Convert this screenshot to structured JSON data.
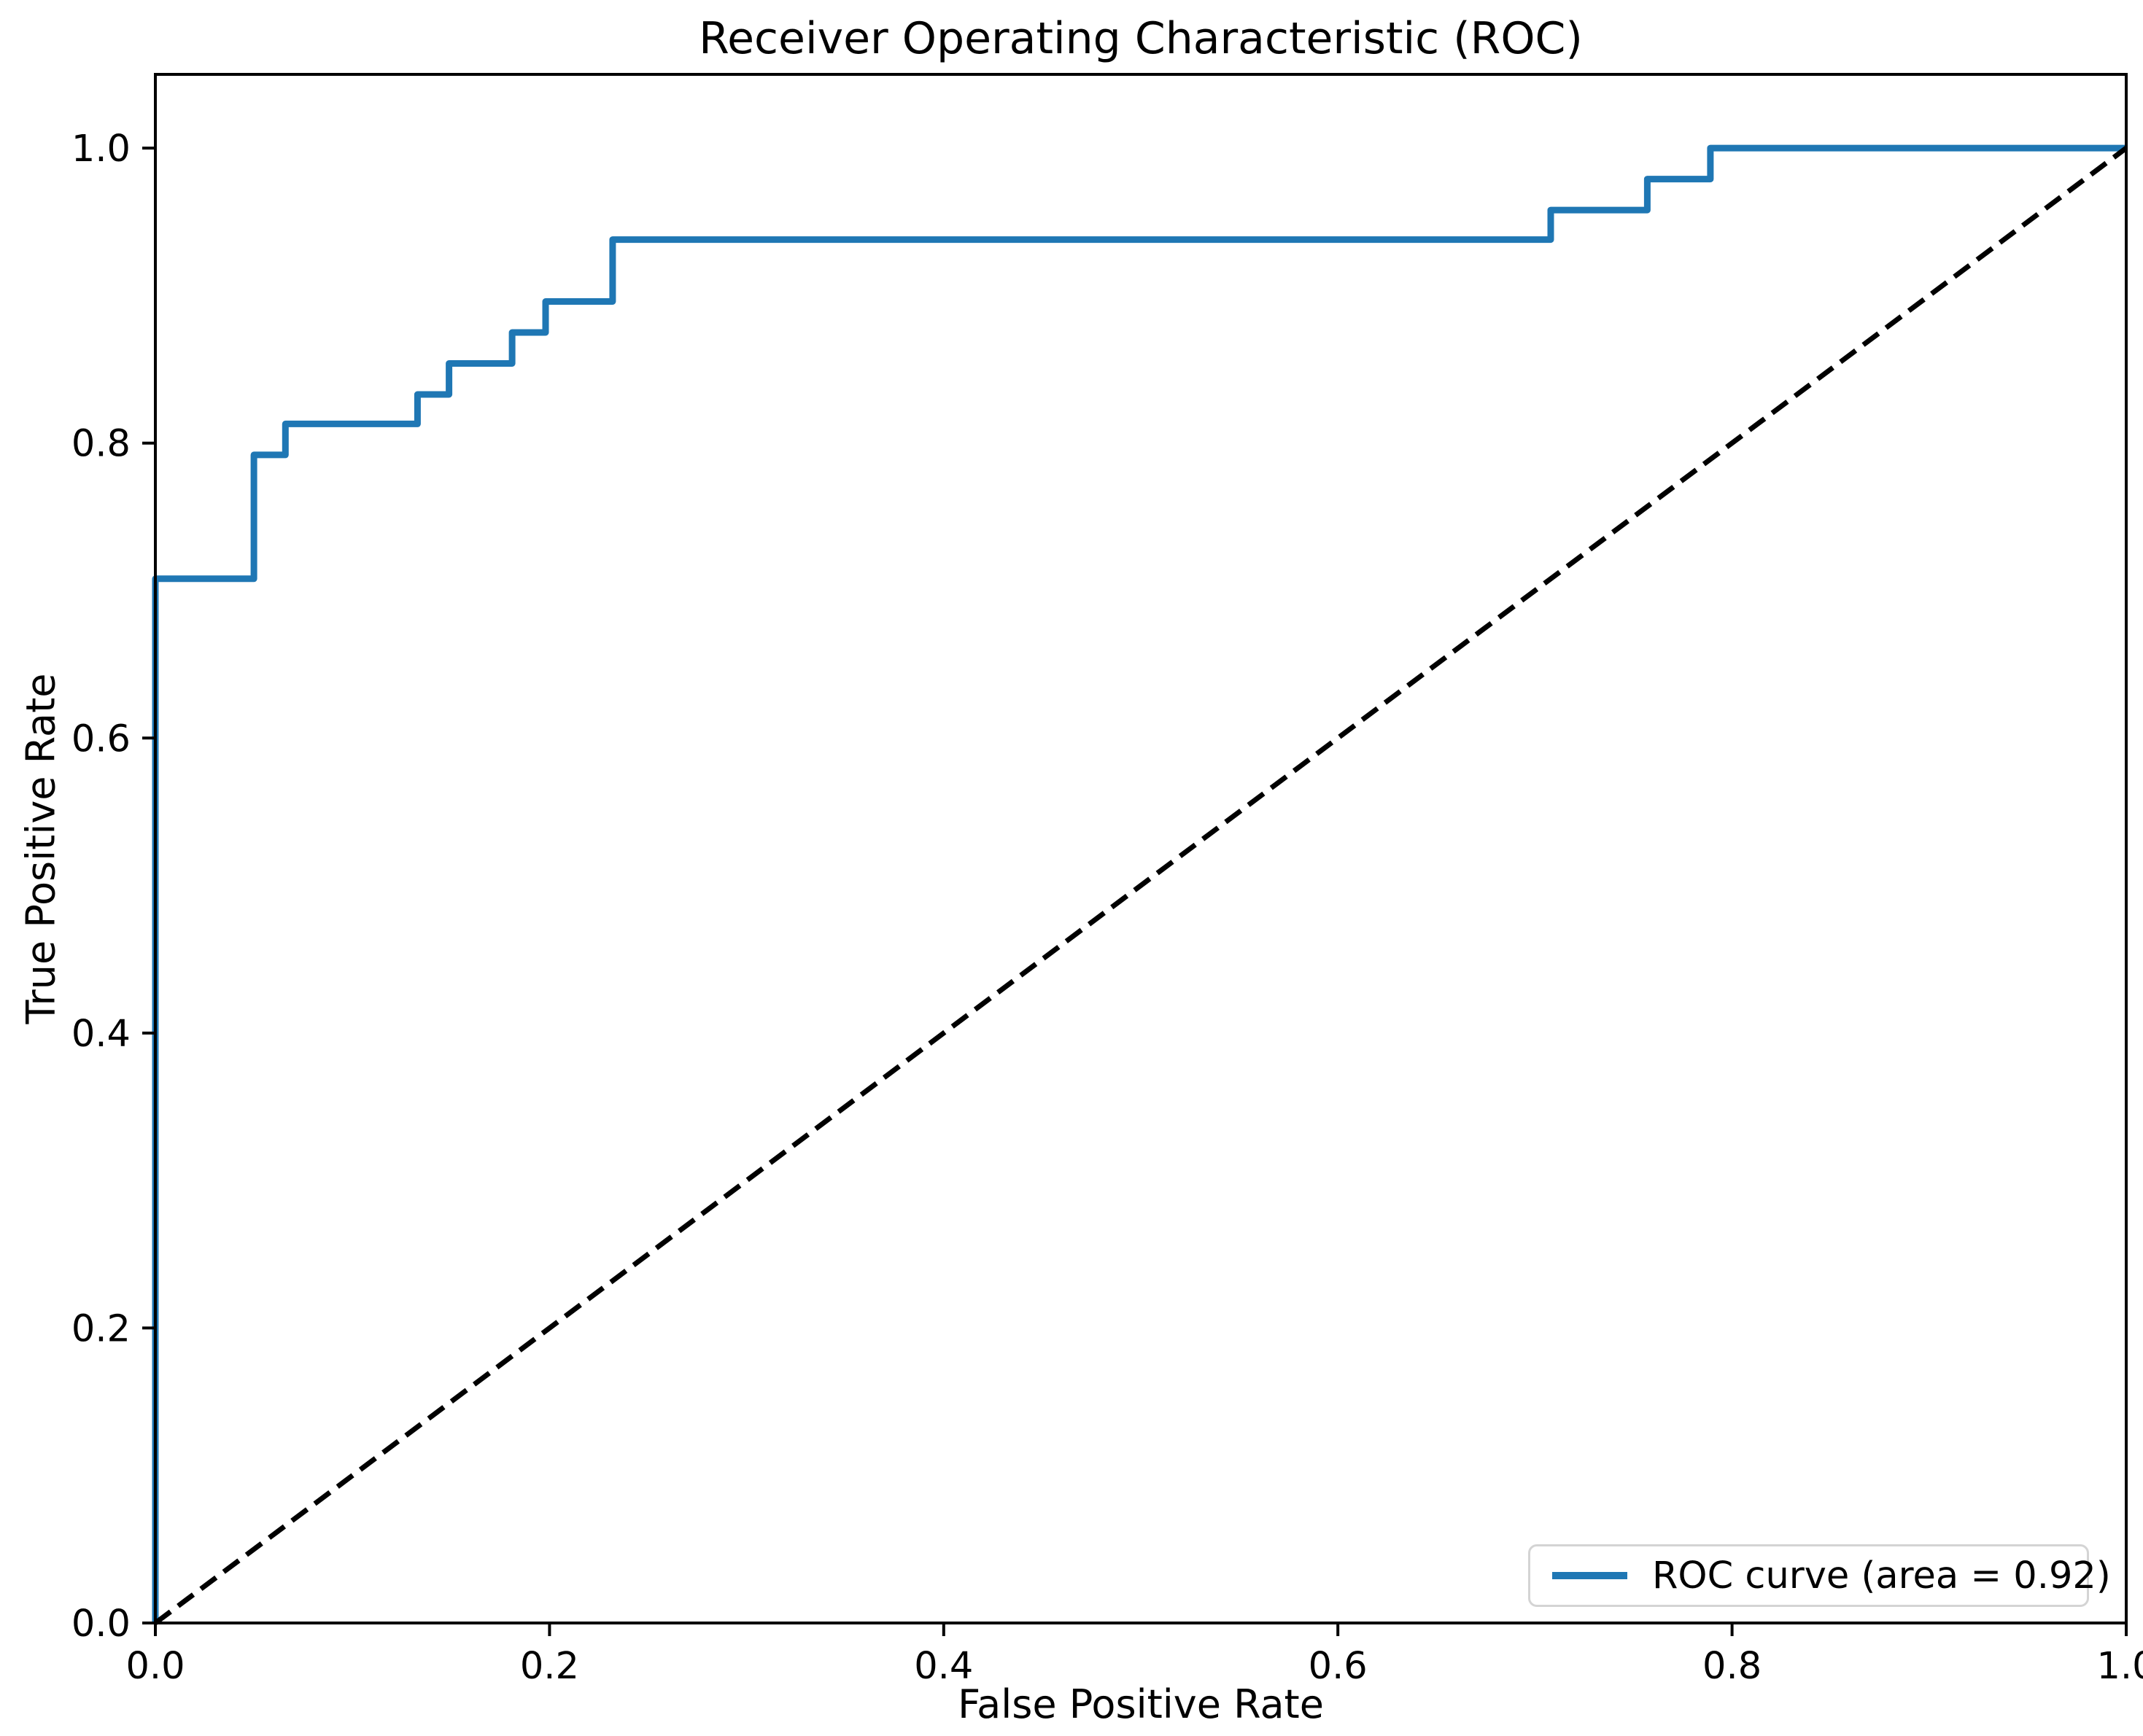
{
  "chart_data": {
    "type": "line",
    "curve_style": "step",
    "title": "Receiver Operating Characteristic (ROC)",
    "xlabel": "False Positive Rate",
    "ylabel": "True Positive Rate",
    "xlim": [
      0.0,
      1.0
    ],
    "ylim": [
      0.0,
      1.05
    ],
    "grid": false,
    "x_ticks": [
      0.0,
      0.2,
      0.4,
      0.6,
      0.8,
      1.0
    ],
    "x_tick_labels": [
      "0.0",
      "0.2",
      "0.4",
      "0.6",
      "0.8",
      "1.0"
    ],
    "y_ticks": [
      0.0,
      0.2,
      0.4,
      0.6,
      0.8,
      1.0
    ],
    "y_tick_labels": [
      "0.0",
      "0.2",
      "0.4",
      "0.6",
      "0.8",
      "1.0"
    ],
    "legend_position": "lower right",
    "legend": {
      "label": "ROC curve (area = 0.92)"
    },
    "colors": {
      "roc_line": "#1f77b4",
      "chance_line": "#000000",
      "axes": "#000000",
      "legend_border": "#d4d4d4",
      "background": "#ffffff"
    },
    "series": [
      {
        "name": "ROC curve (area = 0.92)",
        "auc": 0.92,
        "color": "#1f77b4",
        "style": "solid",
        "points": [
          [
            0.0,
            0.0
          ],
          [
            0.0,
            0.708
          ],
          [
            0.05,
            0.708
          ],
          [
            0.05,
            0.792
          ],
          [
            0.066,
            0.792
          ],
          [
            0.066,
            0.813
          ],
          [
            0.133,
            0.813
          ],
          [
            0.133,
            0.833
          ],
          [
            0.149,
            0.833
          ],
          [
            0.149,
            0.854
          ],
          [
            0.181,
            0.854
          ],
          [
            0.181,
            0.875
          ],
          [
            0.198,
            0.875
          ],
          [
            0.198,
            0.896
          ],
          [
            0.232,
            0.896
          ],
          [
            0.232,
            0.938
          ],
          [
            0.708,
            0.938
          ],
          [
            0.708,
            0.958
          ],
          [
            0.757,
            0.958
          ],
          [
            0.757,
            0.979
          ],
          [
            0.789,
            0.979
          ],
          [
            0.789,
            1.0
          ],
          [
            1.0,
            1.0
          ]
        ]
      },
      {
        "name": "chance diagonal",
        "color": "#000000",
        "style": "dashed",
        "points": [
          [
            0.0,
            0.0
          ],
          [
            1.0,
            1.0
          ]
        ]
      }
    ]
  }
}
